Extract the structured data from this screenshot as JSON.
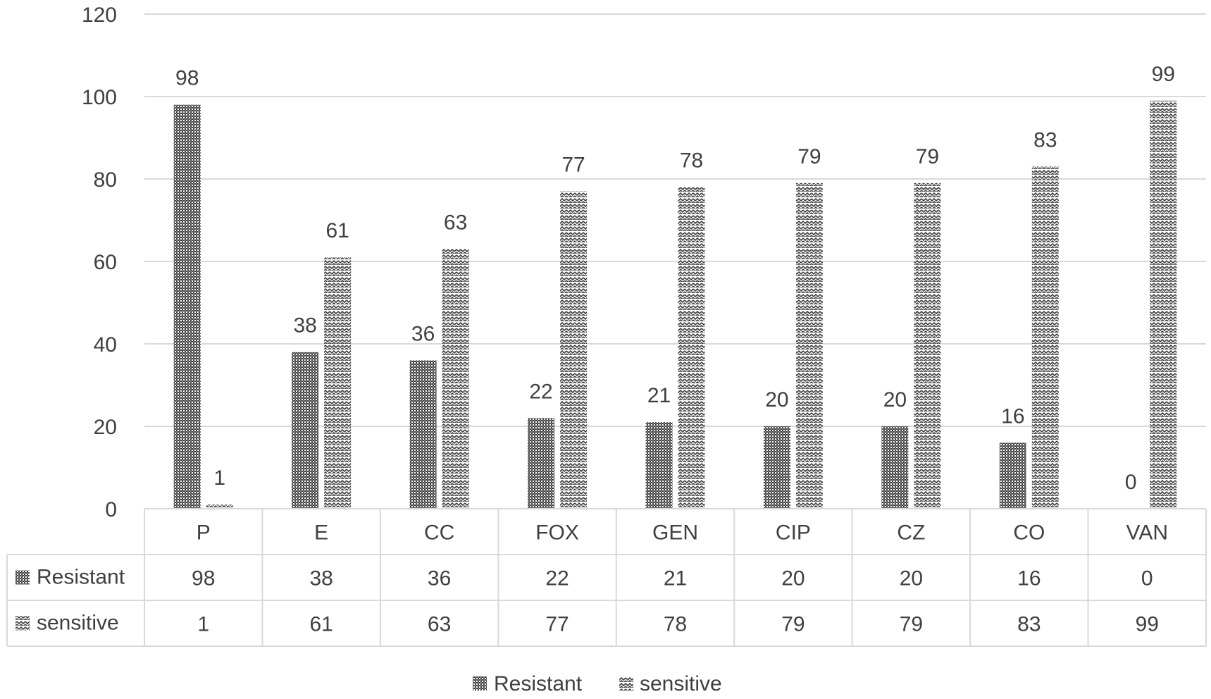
{
  "chart_data": {
    "type": "bar",
    "categories": [
      "P",
      "E",
      "CC",
      "FOX",
      "GEN",
      "CIP",
      "CZ",
      "CO",
      "VAN"
    ],
    "series": [
      {
        "name": "Resistant",
        "values": [
          98,
          38,
          36,
          22,
          21,
          20,
          20,
          16,
          0
        ]
      },
      {
        "name": "sensitive",
        "values": [
          1,
          61,
          63,
          77,
          78,
          79,
          79,
          83,
          99
        ]
      }
    ],
    "yticks": [
      "0",
      "20",
      "40",
      "60",
      "80",
      "100",
      "120"
    ],
    "ylim": [
      0,
      120
    ],
    "grid": true,
    "legend": "bottom-center",
    "data_table": true
  }
}
